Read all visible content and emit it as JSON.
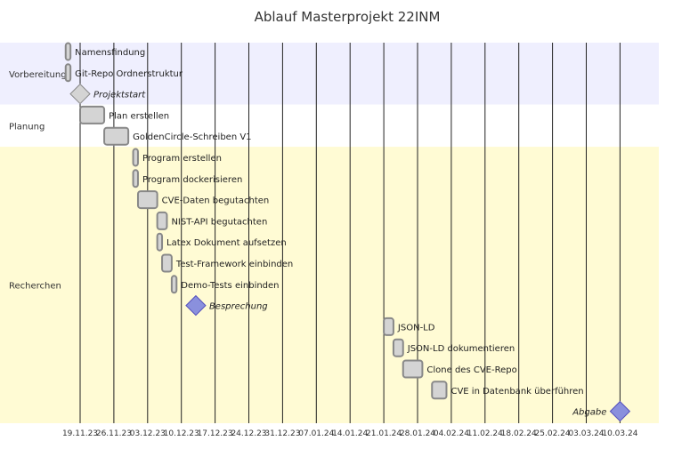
{
  "title": "Ablauf Masterprojekt 22INM",
  "colors": {
    "section_0": "#efeffe",
    "section_1": "#ffffff",
    "section_2": "#fffbd4",
    "task_fill": "#d4d4d4",
    "task_stroke": "#888888",
    "milestone_fill": "#8a90dd",
    "milestone_stroke": "#534fbc",
    "done_milestone_fill": "#d4d4d4",
    "grid": "#222222"
  },
  "axis": {
    "ticks": [
      "19.11.23",
      "26.11.23",
      "03.12.23",
      "10.12.23",
      "17.12.23",
      "24.12.23",
      "31.12.23",
      "07.01.24",
      "14.01.24",
      "21.01.24",
      "28.01.24",
      "04.02.24",
      "11.02.24",
      "18.02.24",
      "25.02.24",
      "03.03.24",
      "10.03.24"
    ]
  },
  "sections": [
    {
      "name": "Vorbereitung",
      "color_key": "section_0"
    },
    {
      "name": "Planung",
      "color_key": "section_1"
    },
    {
      "name": "Recherchen",
      "color_key": "section_2"
    }
  ],
  "tasks": [
    {
      "label": "Namensfindung",
      "section": 0,
      "start": "2023-11-16",
      "end": "2023-11-17",
      "type": "task"
    },
    {
      "label": "Git-Repo Ordnerstruktur",
      "section": 0,
      "start": "2023-11-16",
      "end": "2023-11-17",
      "type": "task"
    },
    {
      "label": "Projektstart",
      "section": 0,
      "start": "2023-11-19",
      "type": "milestone",
      "done": true
    },
    {
      "label": "Plan erstellen",
      "section": 1,
      "start": "2023-11-19",
      "end": "2023-11-24",
      "type": "task"
    },
    {
      "label": "GoldenCircle-Schreiben V1",
      "section": 1,
      "start": "2023-11-24",
      "end": "2023-11-29",
      "type": "task"
    },
    {
      "label": "Program erstellen",
      "section": 2,
      "start": "2023-11-30",
      "end": "2023-12-01",
      "type": "task"
    },
    {
      "label": "Program dockerisieren",
      "section": 2,
      "start": "2023-11-30",
      "end": "2023-12-01",
      "type": "task"
    },
    {
      "label": "CVE-Daten begutachten",
      "section": 2,
      "start": "2023-12-01",
      "end": "2023-12-05",
      "type": "task"
    },
    {
      "label": "NIST-API begutachten",
      "section": 2,
      "start": "2023-12-05",
      "end": "2023-12-07",
      "type": "task"
    },
    {
      "label": "Latex Dokument aufsetzen",
      "section": 2,
      "start": "2023-12-05",
      "end": "2023-12-06",
      "type": "task"
    },
    {
      "label": "Test-Framework einbinden",
      "section": 2,
      "start": "2023-12-06",
      "end": "2023-12-08",
      "type": "task"
    },
    {
      "label": "Demo-Tests einbinden",
      "section": 2,
      "start": "2023-12-08",
      "end": "2023-12-09",
      "type": "task"
    },
    {
      "label": "Besprechung",
      "section": 2,
      "start": "2023-12-13",
      "type": "milestone",
      "done": false
    },
    {
      "label": "JSON-LD",
      "section": 2,
      "start": "2024-01-21",
      "end": "2024-01-23",
      "type": "task"
    },
    {
      "label": "JSON-LD dokumentieren",
      "section": 2,
      "start": "2024-01-23",
      "end": "2024-01-25",
      "type": "task"
    },
    {
      "label": "Clone des CVE-Repo",
      "section": 2,
      "start": "2024-01-25",
      "end": "2024-01-29",
      "type": "task"
    },
    {
      "label": "CVE in Datenbank überführen",
      "section": 2,
      "start": "2024-01-31",
      "end": "2024-02-03",
      "type": "task"
    },
    {
      "label": "Abgabe",
      "section": 2,
      "start": "2024-03-10",
      "type": "milestone",
      "done": false,
      "label_side": "left"
    }
  ]
}
